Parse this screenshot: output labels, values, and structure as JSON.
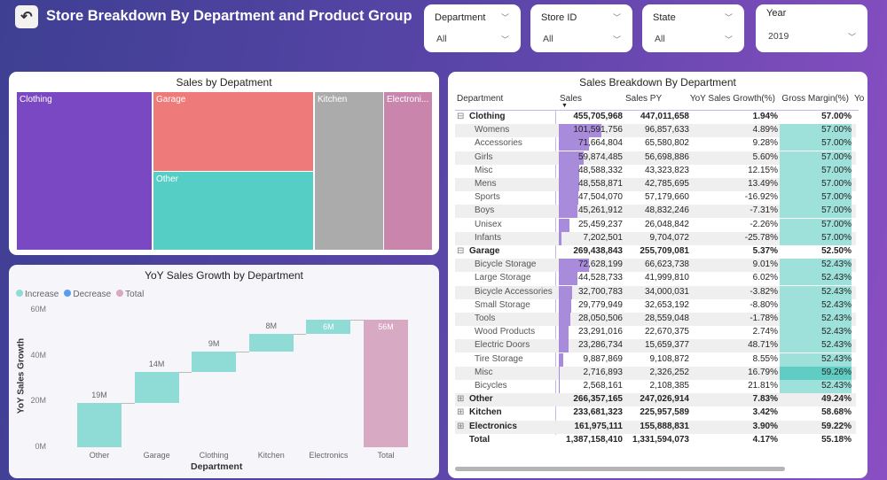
{
  "header": {
    "title": "Store Breakdown By Department and Product Group",
    "back_icon": "back-arrow-icon"
  },
  "filters": [
    {
      "label": "Department",
      "value": "All"
    },
    {
      "label": "Store ID",
      "value": "All"
    },
    {
      "label": "State",
      "value": "All"
    },
    {
      "label": "Year",
      "value": "2019"
    }
  ],
  "treemap": {
    "title": "Sales by Depatment",
    "items": [
      {
        "label": "Clothing",
        "color": "#7b48c4"
      },
      {
        "label": "Garage",
        "color": "#ef7a7a"
      },
      {
        "label": "Other",
        "color": "#55cfc6"
      },
      {
        "label": "Kitchen",
        "color": "#ababab"
      },
      {
        "label": "Electroni...",
        "color": "#c985ab"
      }
    ]
  },
  "chart_data": {
    "type": "waterfall",
    "title": "YoY Sales Growth by Department",
    "xlabel": "Department",
    "ylabel": "YoY Sales Growth",
    "ylim": [
      0,
      60
    ],
    "yticks": [
      "0M",
      "20M",
      "40M",
      "60M"
    ],
    "legend": [
      {
        "label": "Increase",
        "color": "#8fdcd6"
      },
      {
        "label": "Decrease",
        "color": "#5a9cf0"
      },
      {
        "label": "Total",
        "color": "#d8a9c2"
      }
    ],
    "categories": [
      "Other",
      "Garage",
      "Clothing",
      "Kitchen",
      "Electronics",
      "Total"
    ],
    "values": [
      19.33,
      13.73,
      8.69,
      7.72,
      6.09,
      55.56
    ],
    "labels": [
      "19M",
      "14M",
      "9M",
      "8M",
      "6M",
      "56M"
    ]
  },
  "table": {
    "title": "Sales Breakdown By Department",
    "columns": [
      "Department",
      "Sales",
      "Sales PY",
      "YoY Sales Growth(%)",
      "Gross Margin(%)",
      "Yo"
    ],
    "rows": [
      {
        "level": 0,
        "expand": "⊟",
        "name": "Clothing",
        "sales": "455,705,968",
        "py": "447,011,658",
        "yoy": "1.94%",
        "gm": "57.00%"
      },
      {
        "level": 1,
        "name": "Womens",
        "sales": "101,591,756",
        "py": "96,857,633",
        "yoy": "4.89%",
        "gm": "57.00%",
        "bar": 101.59
      },
      {
        "level": 1,
        "name": "Accessories",
        "sales": "71,664,804",
        "py": "65,580,802",
        "yoy": "9.28%",
        "gm": "57.00%",
        "bar": 71.66
      },
      {
        "level": 1,
        "name": "Girls",
        "sales": "59,874,485",
        "py": "56,698,886",
        "yoy": "5.60%",
        "gm": "57.00%",
        "bar": 59.87
      },
      {
        "level": 1,
        "name": "Misc",
        "sales": "48,588,332",
        "py": "43,323,823",
        "yoy": "12.15%",
        "gm": "57.00%",
        "bar": 48.59
      },
      {
        "level": 1,
        "name": "Mens",
        "sales": "48,558,871",
        "py": "42,785,695",
        "yoy": "13.49%",
        "gm": "57.00%",
        "bar": 48.56
      },
      {
        "level": 1,
        "name": "Sports",
        "sales": "47,504,070",
        "py": "57,179,660",
        "yoy": "-16.92%",
        "gm": "57.00%",
        "bar": 47.5
      },
      {
        "level": 1,
        "name": "Boys",
        "sales": "45,261,912",
        "py": "48,832,246",
        "yoy": "-7.31%",
        "gm": "57.00%",
        "bar": 45.26
      },
      {
        "level": 1,
        "name": "Unisex",
        "sales": "25,459,237",
        "py": "26,048,842",
        "yoy": "-2.26%",
        "gm": "57.00%",
        "bar": 25.46
      },
      {
        "level": 1,
        "name": "Infants",
        "sales": "7,202,501",
        "py": "9,704,072",
        "yoy": "-25.78%",
        "gm": "57.00%",
        "bar": 7.2
      },
      {
        "level": 0,
        "expand": "⊟",
        "name": "Garage",
        "sales": "269,438,843",
        "py": "255,709,081",
        "yoy": "5.37%",
        "gm": "52.50%"
      },
      {
        "level": 1,
        "name": "Bicycle Storage",
        "sales": "72,628,199",
        "py": "66,623,738",
        "yoy": "9.01%",
        "gm": "52.43%",
        "bar": 72.63
      },
      {
        "level": 1,
        "name": "Large Storage",
        "sales": "44,528,733",
        "py": "41,999,810",
        "yoy": "6.02%",
        "gm": "52.43%",
        "bar": 44.53
      },
      {
        "level": 1,
        "name": "Bicycle Accessories",
        "sales": "32,700,783",
        "py": "34,000,031",
        "yoy": "-3.82%",
        "gm": "52.43%",
        "bar": 32.7
      },
      {
        "level": 1,
        "name": "Small Storage",
        "sales": "29,779,949",
        "py": "32,653,192",
        "yoy": "-8.80%",
        "gm": "52.43%",
        "bar": 29.78
      },
      {
        "level": 1,
        "name": "Tools",
        "sales": "28,050,506",
        "py": "28,559,048",
        "yoy": "-1.78%",
        "gm": "52.43%",
        "bar": 28.05
      },
      {
        "level": 1,
        "name": "Wood Products",
        "sales": "23,291,016",
        "py": "22,670,375",
        "yoy": "2.74%",
        "gm": "52.43%",
        "bar": 23.29
      },
      {
        "level": 1,
        "name": "Electric Doors",
        "sales": "23,286,734",
        "py": "15,659,377",
        "yoy": "48.71%",
        "gm": "52.43%",
        "bar": 23.29
      },
      {
        "level": 1,
        "name": "Tire Storage",
        "sales": "9,887,869",
        "py": "9,108,872",
        "yoy": "8.55%",
        "gm": "52.43%",
        "bar": 9.89
      },
      {
        "level": 1,
        "name": "Misc",
        "sales": "2,716,893",
        "py": "2,326,252",
        "yoy": "16.79%",
        "gm": "59.26%",
        "bar": 2.72,
        "gm_dark": true
      },
      {
        "level": 1,
        "name": "Bicycles",
        "sales": "2,568,161",
        "py": "2,108,385",
        "yoy": "21.81%",
        "gm": "52.43%",
        "bar": 2.57
      },
      {
        "level": 0,
        "expand": "⊞",
        "name": "Other",
        "sales": "266,357,165",
        "py": "247,026,914",
        "yoy": "7.83%",
        "gm": "49.24%"
      },
      {
        "level": 0,
        "expand": "⊞",
        "name": "Kitchen",
        "sales": "233,681,323",
        "py": "225,957,589",
        "yoy": "3.42%",
        "gm": "58.68%"
      },
      {
        "level": 0,
        "expand": "⊞",
        "name": "Electronics",
        "sales": "161,975,111",
        "py": "155,888,831",
        "yoy": "3.90%",
        "gm": "59.22%"
      },
      {
        "level": 0,
        "name": "Total",
        "sales": "1,387,158,410",
        "py": "1,331,594,073",
        "yoy": "4.17%",
        "gm": "55.18%"
      }
    ]
  }
}
